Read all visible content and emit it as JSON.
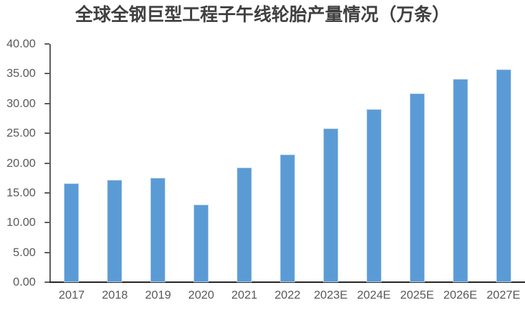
{
  "title": "全球全钢巨型工程子午线轮胎产量情况（万条）",
  "colors": {
    "bar": "#5B9BD5",
    "bar_border": "#BDD7EE",
    "axis": "#595959",
    "baseline": "#1F1F1F",
    "tick_label": "#595959",
    "title": "#404040",
    "background": "#FFFFFF"
  },
  "chart_data": {
    "type": "bar",
    "title": "全球全钢巨型工程子午线轮胎产量情况（万条）",
    "categories": [
      "2017",
      "2018",
      "2019",
      "2020",
      "2021",
      "2022",
      "2023E",
      "2024E",
      "2025E",
      "2026E",
      "2027E"
    ],
    "values": [
      16.6,
      17.2,
      17.5,
      13.0,
      19.2,
      21.4,
      25.8,
      29.0,
      31.7,
      34.1,
      35.7
    ],
    "xlabel": "",
    "ylabel": "",
    "ylim": [
      0,
      40
    ],
    "ytick_step": 5,
    "yticks": [
      "0.00",
      "5.00",
      "10.00",
      "15.00",
      "20.00",
      "25.00",
      "30.00",
      "35.00",
      "40.00"
    ],
    "grid": false,
    "legend": "none",
    "bar_color": "#5B9BD5",
    "unit": "万条"
  }
}
